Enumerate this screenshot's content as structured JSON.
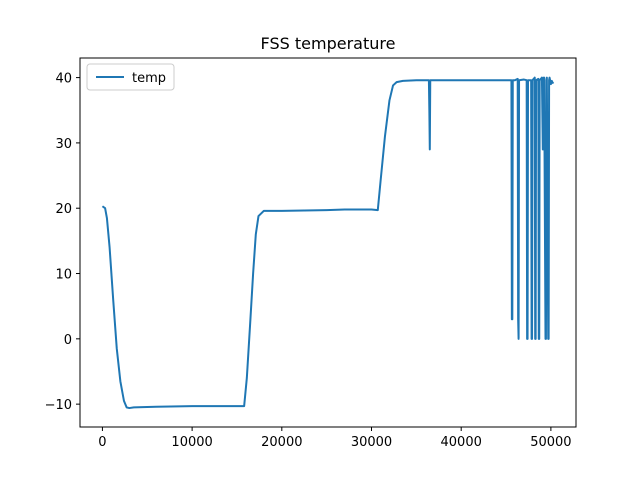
{
  "chart_data": {
    "type": "line",
    "title": "FSS temperature",
    "xlabel": "",
    "ylabel": "",
    "xlim": [
      -2500,
      52800
    ],
    "ylim": [
      -13.5,
      43
    ],
    "xticks": [
      0,
      10000,
      20000,
      30000,
      40000,
      50000
    ],
    "yticks": [
      -10,
      0,
      10,
      20,
      30,
      40
    ],
    "grid": false,
    "legend": "upper-left",
    "series": [
      {
        "name": "temp",
        "color": "#1f77b4",
        "x": [
          0,
          300,
          500,
          800,
          1200,
          1600,
          2000,
          2400,
          2700,
          3000,
          3500,
          6000,
          10000,
          15000,
          15800,
          16100,
          16500,
          16800,
          17100,
          17400,
          18000,
          20000,
          25000,
          27000,
          28000,
          30000,
          30700,
          31000,
          31500,
          32000,
          32400,
          32800,
          33500,
          35000,
          36400,
          36450,
          36500,
          36550,
          37000,
          40000,
          45000,
          45600,
          45650,
          45700,
          45750,
          46000,
          46300,
          46350,
          46400,
          46450,
          47000,
          47300,
          47350,
          47400,
          47450,
          47800,
          47850,
          47900,
          47950,
          48200,
          48250,
          48300,
          48350,
          48600,
          48650,
          48700,
          48750,
          49000,
          49100,
          49150,
          49200,
          49250,
          49400,
          49450,
          49500,
          49550,
          49700,
          49750,
          49800,
          49850,
          50000,
          50100,
          50200,
          50300
        ],
        "values": [
          20.3,
          20,
          18.5,
          14,
          6,
          -1.5,
          -6.5,
          -9.5,
          -10.5,
          -10.6,
          -10.5,
          -10.4,
          -10.3,
          -10.3,
          -10.3,
          -6,
          3,
          10,
          16,
          18.8,
          19.6,
          19.6,
          19.7,
          19.8,
          19.8,
          19.8,
          19.7,
          24,
          31,
          36.5,
          38.8,
          39.3,
          39.5,
          39.6,
          39.6,
          35,
          29,
          39.6,
          39.6,
          39.6,
          39.6,
          39.6,
          3,
          3,
          39.6,
          39.6,
          39.8,
          3,
          0,
          39.6,
          39.7,
          39.6,
          0,
          0,
          39.6,
          39.6,
          0,
          0,
          39.6,
          40,
          0,
          0,
          39.6,
          39.8,
          0,
          0,
          39.6,
          40,
          29,
          29,
          40,
          40,
          0,
          0,
          39.6,
          40,
          0,
          0,
          39.6,
          40,
          39,
          39.5,
          39.2,
          39.3
        ]
      }
    ]
  }
}
